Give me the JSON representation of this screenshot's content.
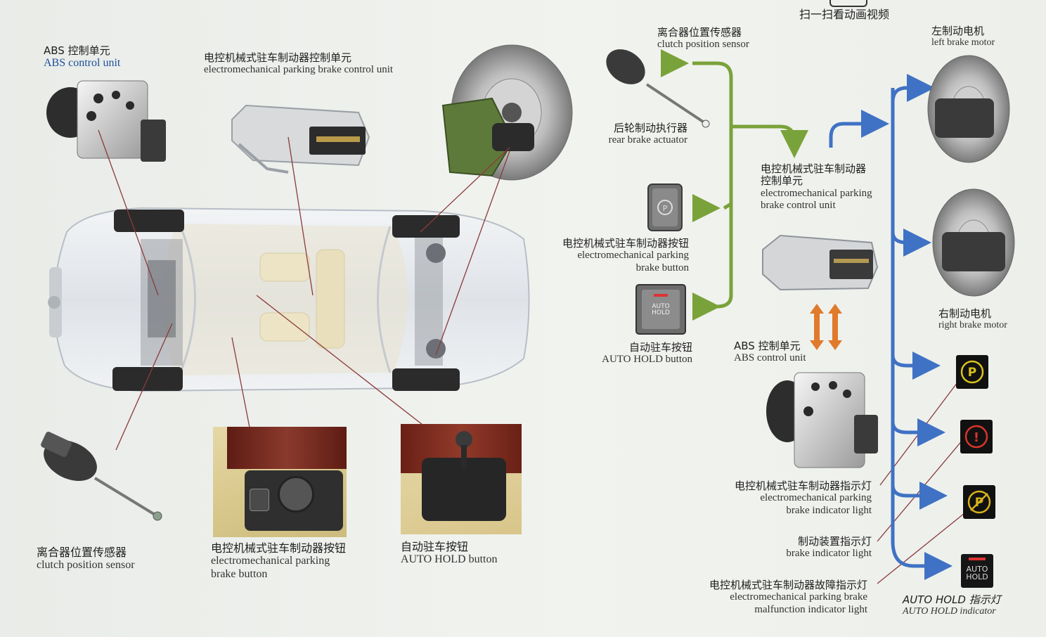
{
  "top_caption": "扫一扫看动画视频",
  "colors": {
    "green_arrow": "#7aa23a",
    "blue_arrow": "#3f72c4",
    "orange_arrow": "#e07a2c",
    "leader_line": "#8a3b3b"
  },
  "left": {
    "abs": {
      "zh": "ABS 控制单元",
      "en": "ABS control unit"
    },
    "epb_unit": {
      "zh": "电控机械式驻车制动器控制单元",
      "en": "electromechanical parking brake control unit"
    },
    "clutch": {
      "zh": "离合器位置传感器",
      "en": "clutch position sensor"
    },
    "epb_button": {
      "zh": "电控机械式驻车制动器按钮",
      "en1": "electromechanical parking",
      "en2": "brake button"
    },
    "auto_hold": {
      "zh": "自动驻车按钮",
      "en": "AUTO HOLD button"
    }
  },
  "flow": {
    "clutch": {
      "zh": "离合器位置传感器",
      "en": "clutch position sensor"
    },
    "actuator": {
      "zh": "后轮制动执行器",
      "en": "rear brake actuator"
    },
    "epb_button": {
      "zh": "电控机械式驻车制动器按钮",
      "en1": "electromechanical parking",
      "en2": "brake button"
    },
    "auto_hold_btn": {
      "zh": "自动驻车按钮",
      "en": "AUTO HOLD button",
      "key_text1": "AUTO",
      "key_text2": "HOLD"
    },
    "control_unit": {
      "zh1": "电控机械式驻车制动器",
      "zh2": "控制单元",
      "en1": "electromechanical parking",
      "en2": "brake control unit"
    },
    "abs": {
      "zh": "ABS 控制单元",
      "en": "ABS control unit"
    },
    "left_motor": {
      "zh": "左制动电机",
      "en": "left brake motor"
    },
    "right_motor": {
      "zh": "右制动电机",
      "en": "right brake motor"
    },
    "epb_light": {
      "zh": "电控机械式驻车制动器指示灯",
      "en1": "electromechanical parking",
      "en2": "brake indicator light"
    },
    "brake_light": {
      "zh": "制动装置指示灯",
      "en": "brake indicator light"
    },
    "fault_light": {
      "zh": "电控机械式驻车制动器故障指示灯",
      "en1": "electromechanical parking brake",
      "en2": "malfunction indicator light"
    },
    "auto_hold_ind": {
      "zh": "AUTO HOLD 指示灯",
      "en": "AUTO HOLD indicator",
      "icon_text1": "AUTO",
      "icon_text2": "HOLD"
    }
  }
}
